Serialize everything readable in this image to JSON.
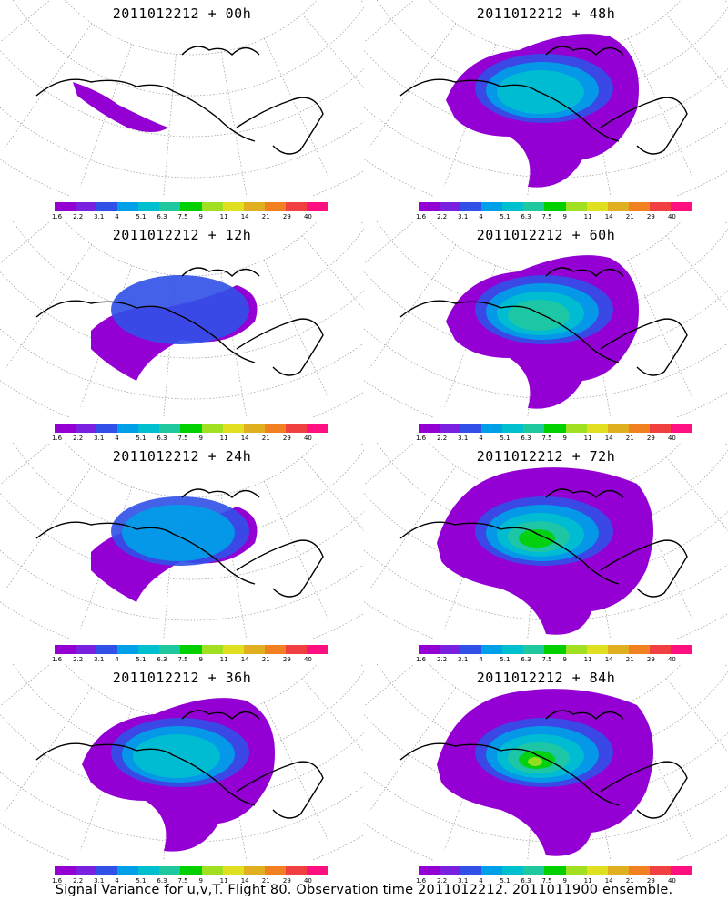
{
  "panels": [
    {
      "title": "2011012212 + 00h",
      "lead_hours": 0,
      "max_level": 1
    },
    {
      "title": "2011012212 + 48h",
      "lead_hours": 48,
      "max_level": 4
    },
    {
      "title": "2011012212 + 12h",
      "lead_hours": 12,
      "max_level": 2
    },
    {
      "title": "2011012212 + 60h",
      "lead_hours": 60,
      "max_level": 5
    },
    {
      "title": "2011012212 + 24h",
      "lead_hours": 24,
      "max_level": 3
    },
    {
      "title": "2011012212 + 72h",
      "lead_hours": 72,
      "max_level": 6
    },
    {
      "title": "2011012212 + 36h",
      "lead_hours": 36,
      "max_level": 4
    },
    {
      "title": "2011012212 + 84h",
      "lead_hours": 84,
      "max_level": 7
    }
  ],
  "colorbar": {
    "labels": [
      "1.6",
      "2.2",
      "3.1",
      "4",
      "5.1",
      "6.3",
      "7.5",
      "9",
      "11",
      "14",
      "21",
      "29",
      "40"
    ],
    "colors": [
      "#9400d3",
      "#7b1fe0",
      "#3050e8",
      "#00a0e8",
      "#00c0d0",
      "#20c8a0",
      "#00d000",
      "#a0e020",
      "#e0e020",
      "#e0b020",
      "#f08020",
      "#f04040",
      "#ff1080"
    ]
  },
  "caption": "Signal Variance for u,v,T. Flight 80. Observation time 2011012212. 2011011900 ensemble."
}
